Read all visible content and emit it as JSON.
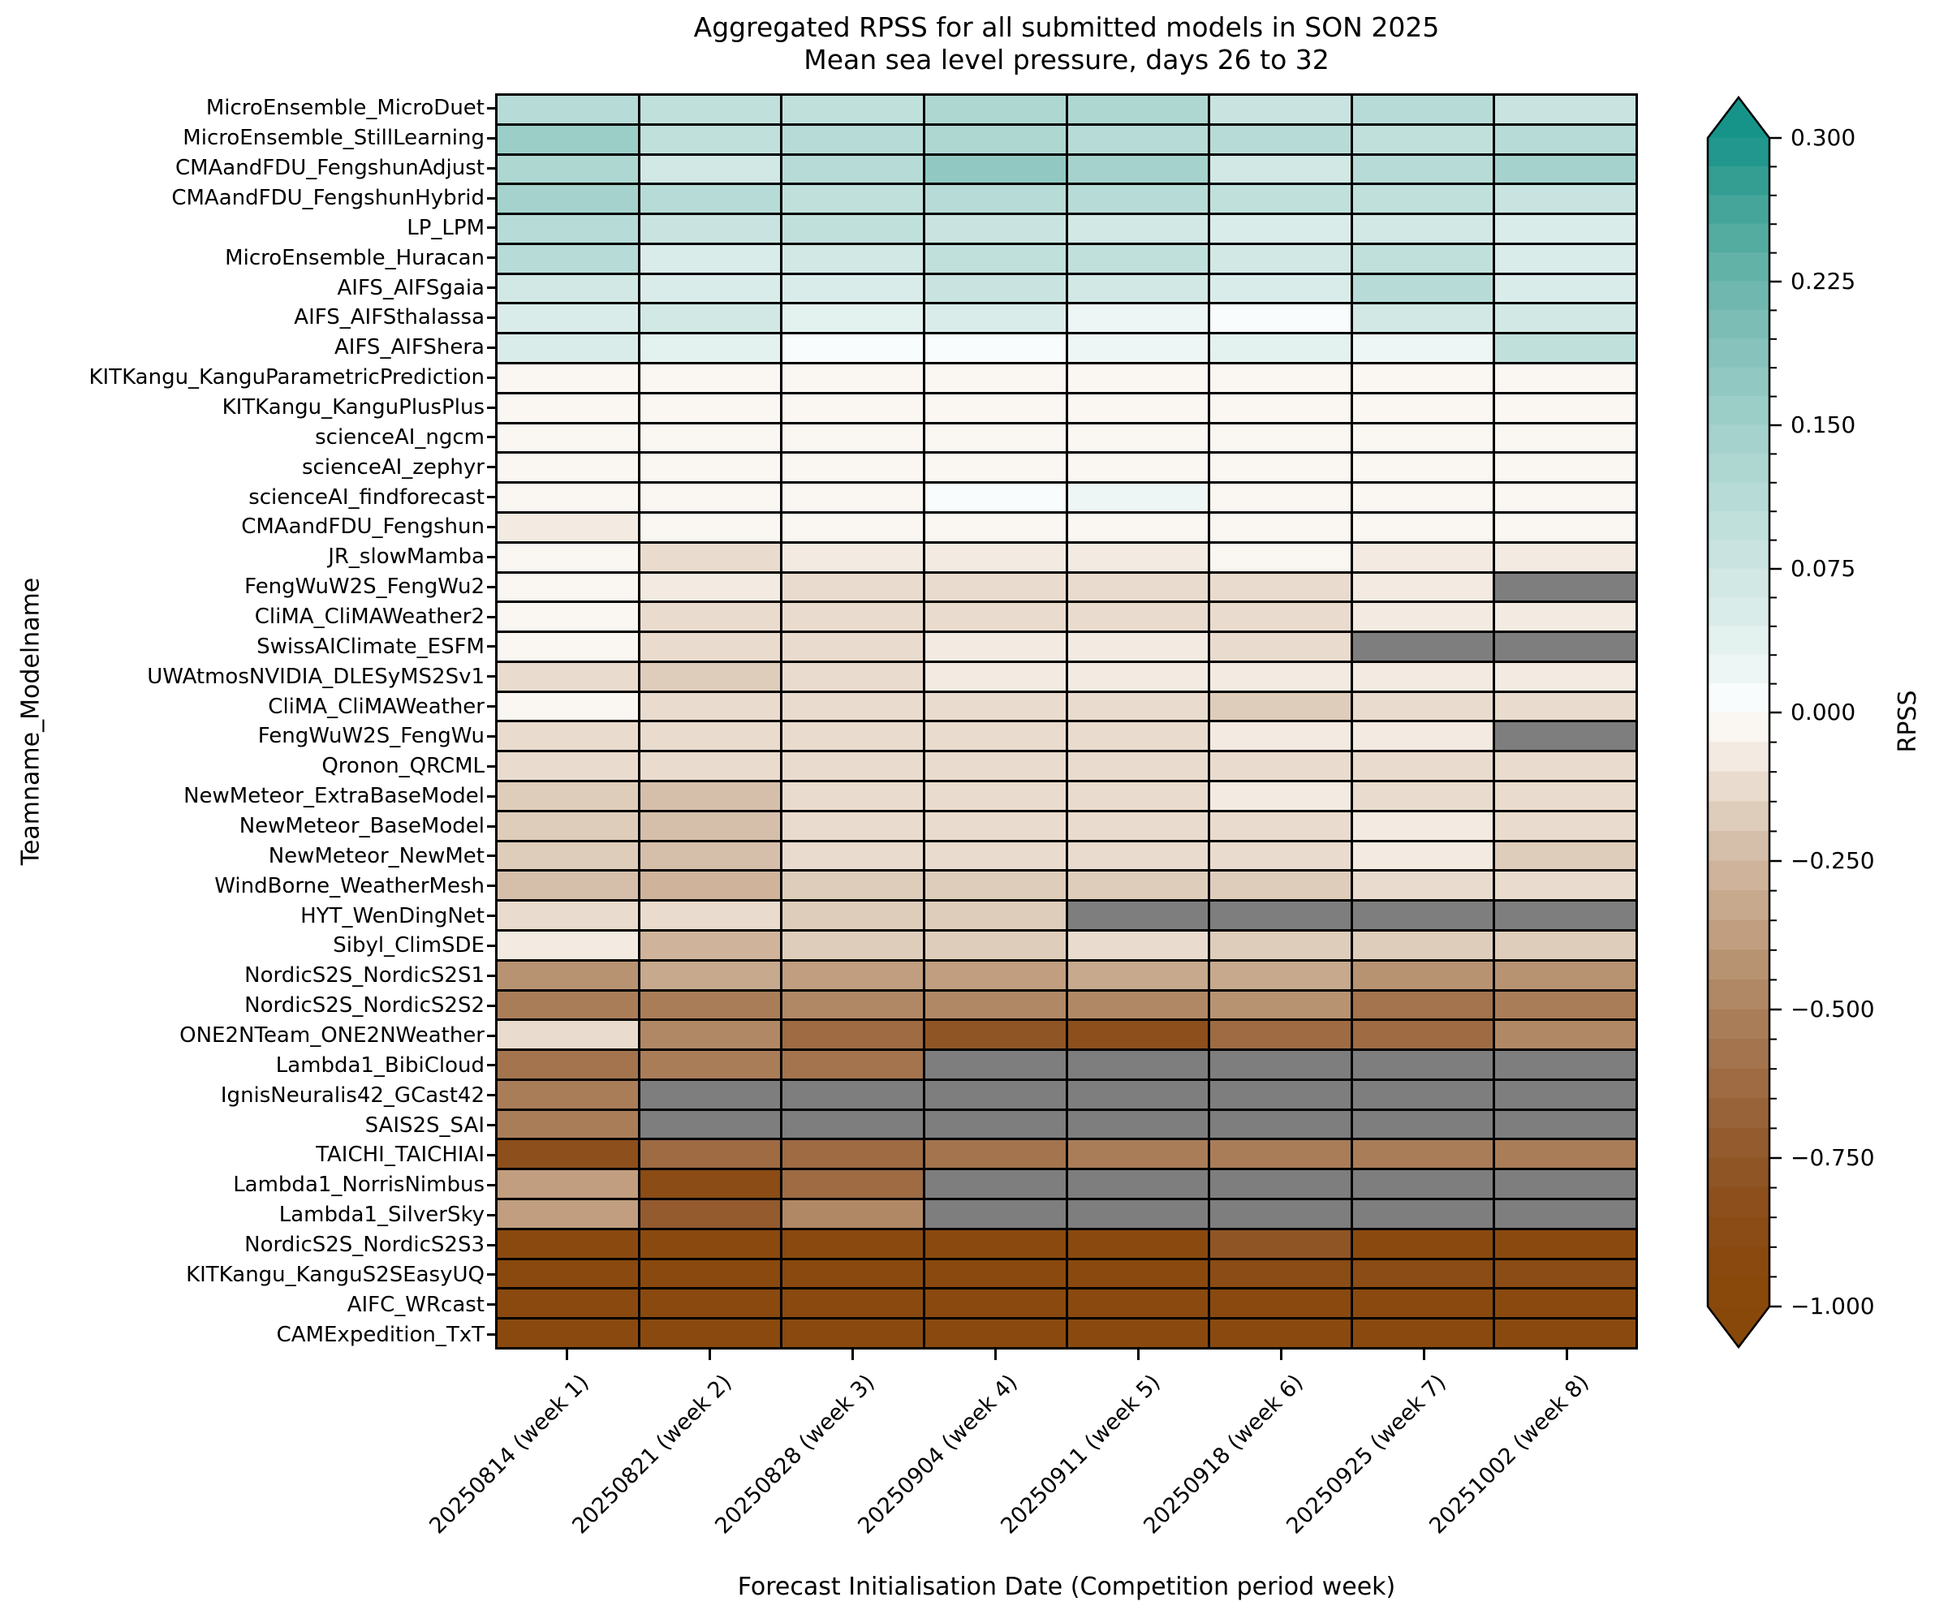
{
  "title": {
    "line1": "Aggregated RPSS for all submitted models in SON 2025",
    "line2": "Mean sea level pressure, days 26 to 32"
  },
  "chart_data": {
    "type": "heatmap",
    "title": "Aggregated RPSS for all submitted models in SON 2025",
    "subtitle": "Mean sea level pressure, days 26 to 32",
    "xlabel": "Forecast Initialisation Date (Competition period week)",
    "ylabel": "Teamname_Modelname",
    "grid": "black cell borders",
    "legend_position": "right colorbar",
    "x_categories": [
      "20250814 (week 1)",
      "20250821 (week 2)",
      "20250828 (week 3)",
      "20250904 (week 4)",
      "20250911 (week 5)",
      "20250918 (week 6)",
      "20250925 (week 7)",
      "20251002 (week 8)"
    ],
    "y_categories": [
      "MicroEnsemble_MicroDuet",
      "MicroEnsemble_StillLearning",
      "CMAandFDU_FengshunAdjust",
      "CMAandFDU_FengshunHybrid",
      "LP_LPM",
      "MicroEnsemble_Huracan",
      "AIFS_AIFSgaia",
      "AIFS_AIFSthalassa",
      "AIFS_AIFShera",
      "KITKangu_KanguParametricPrediction",
      "KITKangu_KanguPlusPlus",
      "scienceAI_ngcm",
      "scienceAI_zephyr",
      "scienceAI_findforecast",
      "CMAandFDU_Fengshun",
      "JR_slowMamba",
      "FengWuW2S_FengWu2",
      "CliMA_CliMAWeather2",
      "SwissAIClimate_ESFM",
      "UWAtmosNVIDIA_DLESyMS2Sv1",
      "CliMA_CliMAWeather",
      "FengWuW2S_FengWu",
      "Qronon_QRCML",
      "NewMeteor_ExtraBaseModel",
      "NewMeteor_BaseModel",
      "NewMeteor_NewMet",
      "WindBorne_WeatherMesh",
      "HYT_WenDingNet",
      "Sibyl_ClimSDE",
      "NordicS2S_NordicS2S1",
      "NordicS2S_NordicS2S2",
      "ONE2NTeam_ONE2NWeather",
      "Lambda1_BibiCloud",
      "IgnisNeuralis42_GCast42",
      "SAIS2S_SAI",
      "TAICHI_TAICHIAI",
      "Lambda1_NorrisNimbus",
      "Lambda1_SilverSky",
      "NordicS2S_NordicS2S3",
      "KITKangu_KanguS2SEasyUQ",
      "AIFC_WRcast",
      "CAMExpedition_TxT"
    ],
    "values": [
      [
        0.115,
        0.09,
        0.1,
        0.125,
        0.13,
        0.085,
        0.115,
        0.08
      ],
      [
        0.155,
        0.1,
        0.105,
        0.13,
        0.105,
        0.105,
        0.095,
        0.115
      ],
      [
        0.12,
        0.06,
        0.11,
        0.165,
        0.14,
        0.06,
        0.105,
        0.145
      ],
      [
        0.135,
        0.11,
        0.1,
        0.11,
        0.115,
        0.09,
        0.09,
        0.085
      ],
      [
        0.115,
        0.08,
        0.09,
        0.08,
        0.065,
        0.055,
        0.07,
        0.05
      ],
      [
        0.11,
        0.045,
        0.07,
        0.09,
        0.095,
        0.065,
        0.1,
        0.055
      ],
      [
        0.06,
        0.055,
        0.055,
        0.075,
        0.065,
        0.05,
        0.11,
        0.052
      ],
      [
        0.05,
        0.06,
        0.033,
        0.05,
        0.028,
        0.005,
        0.063,
        0.065
      ],
      [
        0.05,
        0.03,
        0.005,
        0.005,
        0.022,
        0.04,
        0.022,
        0.09
      ],
      [
        -0.03,
        -0.035,
        -0.03,
        -0.035,
        -0.035,
        -0.04,
        -0.03,
        -0.035
      ],
      [
        -0.04,
        -0.04,
        -0.035,
        -0.04,
        -0.04,
        -0.035,
        -0.04,
        -0.04
      ],
      [
        -0.04,
        -0.045,
        -0.045,
        -0.04,
        -0.045,
        -0.04,
        -0.04,
        -0.045
      ],
      [
        -0.048,
        -0.045,
        -0.048,
        -0.045,
        -0.045,
        -0.048,
        -0.045,
        -0.048
      ],
      [
        -0.045,
        -0.04,
        -0.04,
        0.004,
        0.02,
        -0.045,
        -0.04,
        -0.045
      ],
      [
        -0.065,
        -0.045,
        -0.04,
        -0.045,
        -0.04,
        -0.045,
        -0.045,
        -0.04
      ],
      [
        -0.04,
        -0.115,
        -0.075,
        -0.052,
        -0.052,
        -0.045,
        -0.052,
        -0.052
      ],
      [
        -0.035,
        -0.09,
        -0.11,
        -0.105,
        -0.13,
        -0.115,
        -0.06,
        null
      ],
      [
        -0.03,
        -0.115,
        -0.12,
        -0.125,
        -0.115,
        -0.115,
        -0.08,
        -0.085
      ],
      [
        -0.035,
        -0.125,
        -0.115,
        -0.055,
        -0.052,
        -0.115,
        null,
        null
      ],
      [
        -0.13,
        -0.18,
        -0.12,
        -0.055,
        -0.06,
        -0.055,
        -0.07,
        -0.075
      ],
      [
        -0.025,
        -0.11,
        -0.13,
        -0.13,
        -0.125,
        -0.155,
        -0.125,
        -0.13
      ],
      [
        -0.14,
        -0.135,
        -0.14,
        -0.135,
        -0.135,
        -0.085,
        -0.095,
        null
      ],
      [
        -0.15,
        -0.135,
        -0.14,
        -0.14,
        -0.14,
        -0.125,
        -0.13,
        -0.125
      ],
      [
        -0.165,
        -0.205,
        -0.145,
        -0.14,
        -0.145,
        -0.095,
        -0.1,
        -0.135
      ],
      [
        -0.16,
        -0.205,
        -0.14,
        -0.145,
        -0.14,
        -0.135,
        -0.09,
        -0.135
      ],
      [
        -0.165,
        -0.21,
        -0.15,
        -0.14,
        -0.145,
        -0.135,
        -0.095,
        -0.155
      ],
      [
        -0.22,
        -0.28,
        -0.16,
        -0.17,
        -0.165,
        -0.16,
        -0.12,
        -0.105
      ],
      [
        -0.11,
        -0.12,
        -0.16,
        -0.17,
        null,
        null,
        null,
        null
      ],
      [
        -0.095,
        -0.28,
        -0.17,
        -0.16,
        -0.13,
        -0.165,
        -0.16,
        -0.155
      ],
      [
        -0.44,
        -0.33,
        -0.36,
        -0.36,
        -0.34,
        -0.32,
        -0.43,
        -0.42
      ],
      [
        -0.52,
        -0.51,
        -0.49,
        -0.46,
        -0.45,
        -0.43,
        -0.57,
        -0.52
      ],
      [
        -0.13,
        -0.47,
        -0.62,
        -0.78,
        -0.8,
        -0.62,
        -0.63,
        -0.48
      ],
      [
        -0.57,
        -0.52,
        -0.57,
        null,
        null,
        null,
        null,
        null
      ],
      [
        -0.52,
        null,
        null,
        null,
        null,
        null,
        null,
        null
      ],
      [
        -0.53,
        null,
        null,
        null,
        null,
        null,
        null,
        null
      ],
      [
        -0.84,
        -0.62,
        -0.61,
        -0.58,
        -0.52,
        -0.52,
        -0.52,
        -0.5
      ],
      [
        -0.37,
        -0.85,
        -0.62,
        null,
        null,
        null,
        null,
        null
      ],
      [
        -0.37,
        -0.71,
        -0.45,
        null,
        null,
        null,
        null,
        null
      ],
      [
        -0.93,
        -0.94,
        -0.93,
        -0.92,
        -0.94,
        -0.77,
        -0.93,
        -0.92
      ],
      [
        -0.94,
        -0.93,
        -0.94,
        -0.93,
        -0.93,
        -0.89,
        -0.89,
        -0.89
      ],
      [
        -0.94,
        -0.94,
        -0.93,
        -0.94,
        -0.93,
        -0.92,
        -0.93,
        -0.93
      ],
      [
        -0.94,
        -0.93,
        -0.94,
        -0.93,
        -0.94,
        -0.93,
        -0.93,
        -0.93
      ]
    ],
    "missing_color": "#7e7e7e",
    "colorbar": {
      "label": "RPSS",
      "vmin": -1.0,
      "vmax": 0.3,
      "extend": "both",
      "positive_band_step": 0.015,
      "negative_band_step": 0.05,
      "major_ticks": [
        {
          "label": "0.300",
          "value": 0.3
        },
        {
          "label": "0.225",
          "value": 0.225
        },
        {
          "label": "0.150",
          "value": 0.15
        },
        {
          "label": "0.075",
          "value": 0.075
        },
        {
          "label": "0.000",
          "value": 0.0
        },
        {
          "label": "−0.250",
          "value": -0.25
        },
        {
          "label": "−0.500",
          "value": -0.5
        },
        {
          "label": "−0.750",
          "value": -0.75
        },
        {
          "label": "−1.000",
          "value": -1.0
        }
      ]
    },
    "colormap": {
      "positive_stops": [
        [
          0,
          "#ffffff"
        ],
        [
          0.1,
          "#e7f3f1"
        ],
        [
          0.2,
          "#d5eae7"
        ],
        [
          0.3,
          "#c5e2de"
        ],
        [
          0.4,
          "#b2d9d4"
        ],
        [
          0.5,
          "#a0d0ca"
        ],
        [
          0.6,
          "#8cc6bf"
        ],
        [
          0.7,
          "#76bbb2"
        ],
        [
          0.8,
          "#5cafa4"
        ],
        [
          0.9,
          "#3da196"
        ],
        [
          1,
          "#17948a"
        ]
      ],
      "negative_stops": [
        [
          0,
          "#fdfcfa"
        ],
        [
          0.05,
          "#f7f0ea"
        ],
        [
          0.1,
          "#eee3d8"
        ],
        [
          0.2,
          "#dac5b1"
        ],
        [
          0.3,
          "#cbae94"
        ],
        [
          0.4,
          "#bc9878"
        ],
        [
          0.5,
          "#ad825e"
        ],
        [
          0.6,
          "#a06f48"
        ],
        [
          0.7,
          "#965f34"
        ],
        [
          0.8,
          "#8e5120"
        ],
        [
          0.9,
          "#8a4a11"
        ],
        [
          1,
          "#884809"
        ]
      ],
      "over_color": "#17948a",
      "under_color": "#884809",
      "grid_line_color": "#000000"
    }
  }
}
